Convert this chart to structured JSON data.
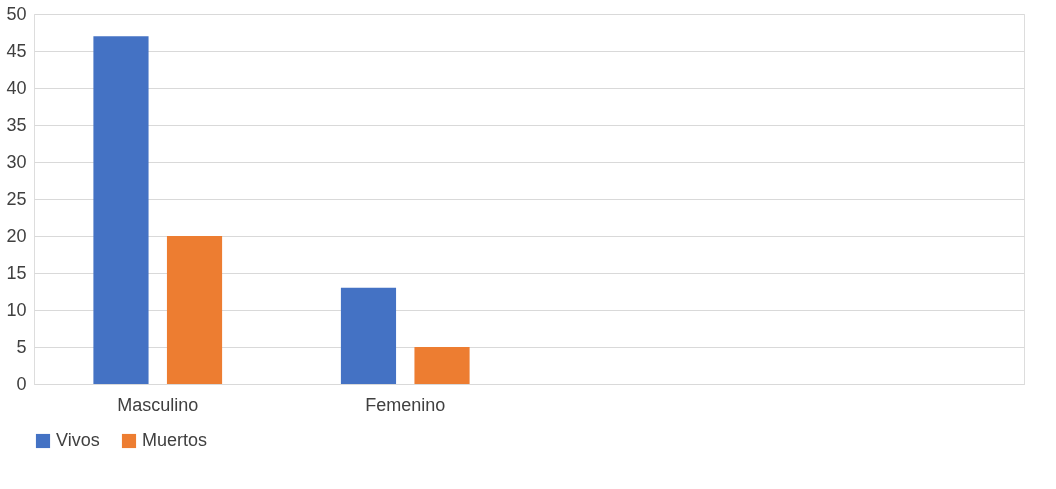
{
  "chart_data": {
    "type": "bar",
    "categories": [
      "Masculino",
      "Femenino",
      null,
      null
    ],
    "series": [
      {
        "name": "Vivos",
        "color": "#4472c4",
        "values": [
          47,
          13,
          null,
          null
        ]
      },
      {
        "name": "Muertos",
        "color": "#ed7d31",
        "values": [
          20,
          5,
          null,
          null
        ]
      }
    ],
    "ylim": [
      0,
      50
    ],
    "yticks": [
      0,
      5,
      10,
      15,
      20,
      25,
      30,
      35,
      40,
      45,
      50
    ],
    "grid": "y",
    "legend": "bottom"
  }
}
